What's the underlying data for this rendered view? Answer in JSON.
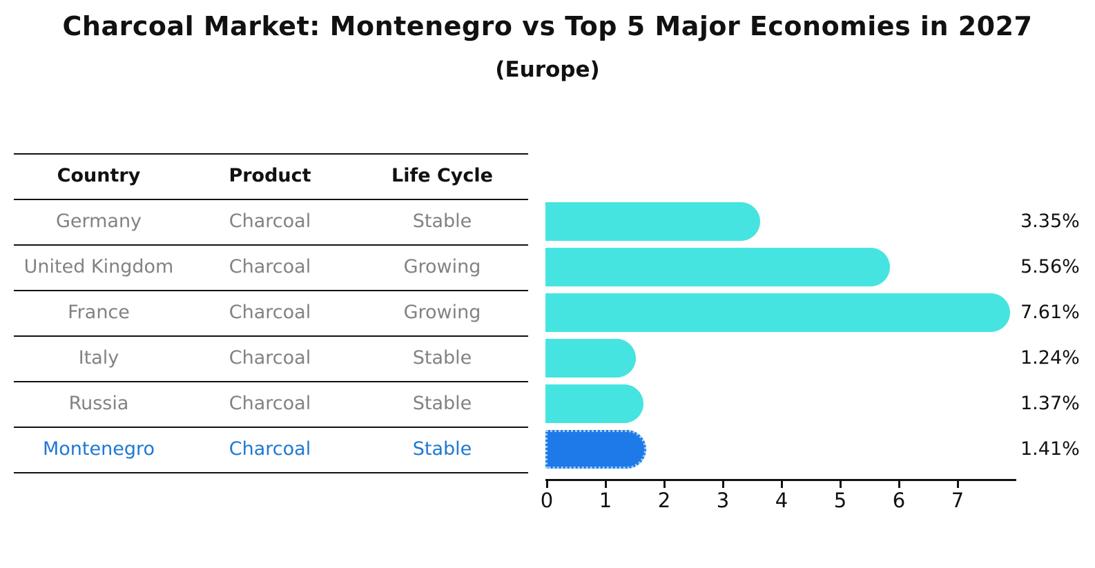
{
  "title": "Charcoal Market: Montenegro vs Top 5 Major Economies in 2027",
  "subtitle": "(Europe)",
  "table": {
    "headers": [
      "Country",
      "Product",
      "Life Cycle"
    ],
    "rows": [
      {
        "country": "Germany",
        "product": "Charcoal",
        "life_cycle": "Stable",
        "highlight": false
      },
      {
        "country": "United Kingdom",
        "product": "Charcoal",
        "life_cycle": "Growing",
        "highlight": false
      },
      {
        "country": "France",
        "product": "Charcoal",
        "life_cycle": "Growing",
        "highlight": false
      },
      {
        "country": "Italy",
        "product": "Charcoal",
        "life_cycle": "Stable",
        "highlight": false
      },
      {
        "country": "Russia",
        "product": "Charcoal",
        "life_cycle": "Stable",
        "highlight": false
      },
      {
        "country": "Montenegro",
        "product": "Charcoal",
        "life_cycle": "Stable",
        "highlight": true
      }
    ]
  },
  "chart_data": {
    "type": "bar",
    "orientation": "horizontal",
    "title": "Charcoal Market: Montenegro vs Top 5 Major Economies in 2027",
    "subtitle": "(Europe)",
    "categories": [
      "Germany",
      "United Kingdom",
      "France",
      "Italy",
      "Russia",
      "Montenegro"
    ],
    "values": [
      3.35,
      5.56,
      7.61,
      1.24,
      1.37,
      1.41
    ],
    "value_labels": [
      "3.35%",
      "5.56%",
      "7.61%",
      "1.24%",
      "1.37%",
      "1.41%"
    ],
    "highlight_index": 5,
    "xticks": [
      "0",
      "1",
      "2",
      "3",
      "4",
      "5",
      "6",
      "7"
    ],
    "xlim": [
      0,
      8
    ],
    "grid": false,
    "legend": false
  },
  "colors": {
    "bar": "#46e4e0",
    "highlight_bar": "#1e7ae8",
    "highlight_dots": "#a2cdf2",
    "highlight_text": "#1f78d2",
    "row_text": "#828282",
    "header_text": "#111111"
  }
}
